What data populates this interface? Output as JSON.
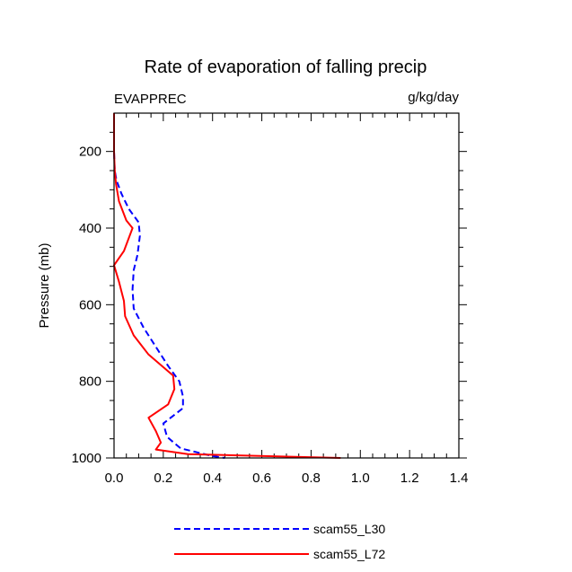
{
  "chart_data": {
    "type": "line",
    "title": "Rate of evaporation of falling precip",
    "left_label": "EVAPPREC",
    "right_label": "g/kg/day",
    "xlabel": "",
    "ylabel": "Pressure (mb)",
    "xlim": [
      0.0,
      1.4
    ],
    "ylim": [
      1000,
      100
    ],
    "y_inverted": true,
    "x_ticks": [
      "0.0",
      "0.2",
      "0.4",
      "0.6",
      "0.8",
      "1.0",
      "1.2",
      "1.4"
    ],
    "y_ticks": [
      "200",
      "400",
      "600",
      "800",
      "1000"
    ],
    "legend_position": "bottom-center",
    "series": [
      {
        "name": "scam55_L30",
        "color": "#0000ff",
        "style": "dashed",
        "points": [
          [
            0.0,
            100
          ],
          [
            0.0,
            200
          ],
          [
            0.003,
            250
          ],
          [
            0.01,
            275
          ],
          [
            0.03,
            310
          ],
          [
            0.06,
            350
          ],
          [
            0.1,
            385
          ],
          [
            0.105,
            420
          ],
          [
            0.095,
            470
          ],
          [
            0.08,
            510
          ],
          [
            0.075,
            560
          ],
          [
            0.08,
            610
          ],
          [
            0.12,
            660
          ],
          [
            0.17,
            710
          ],
          [
            0.22,
            760
          ],
          [
            0.265,
            800
          ],
          [
            0.28,
            840
          ],
          [
            0.28,
            870
          ],
          [
            0.2,
            910
          ],
          [
            0.215,
            945
          ],
          [
            0.27,
            975
          ],
          [
            0.4,
            995
          ],
          [
            0.45,
            1000
          ]
        ]
      },
      {
        "name": "scam55_L72",
        "color": "#ff0000",
        "style": "solid",
        "points": [
          [
            0.0,
            100
          ],
          [
            0.0,
            200
          ],
          [
            0.003,
            250
          ],
          [
            0.008,
            285
          ],
          [
            0.02,
            330
          ],
          [
            0.05,
            380
          ],
          [
            0.075,
            400
          ],
          [
            0.04,
            460
          ],
          [
            0.0,
            497
          ],
          [
            0.02,
            540
          ],
          [
            0.04,
            590
          ],
          [
            0.045,
            630
          ],
          [
            0.08,
            680
          ],
          [
            0.14,
            730
          ],
          [
            0.24,
            785
          ],
          [
            0.245,
            820
          ],
          [
            0.22,
            860
          ],
          [
            0.14,
            895
          ],
          [
            0.17,
            930
          ],
          [
            0.19,
            960
          ],
          [
            0.17,
            978
          ],
          [
            0.3,
            990
          ],
          [
            0.92,
            1000
          ]
        ]
      }
    ]
  }
}
